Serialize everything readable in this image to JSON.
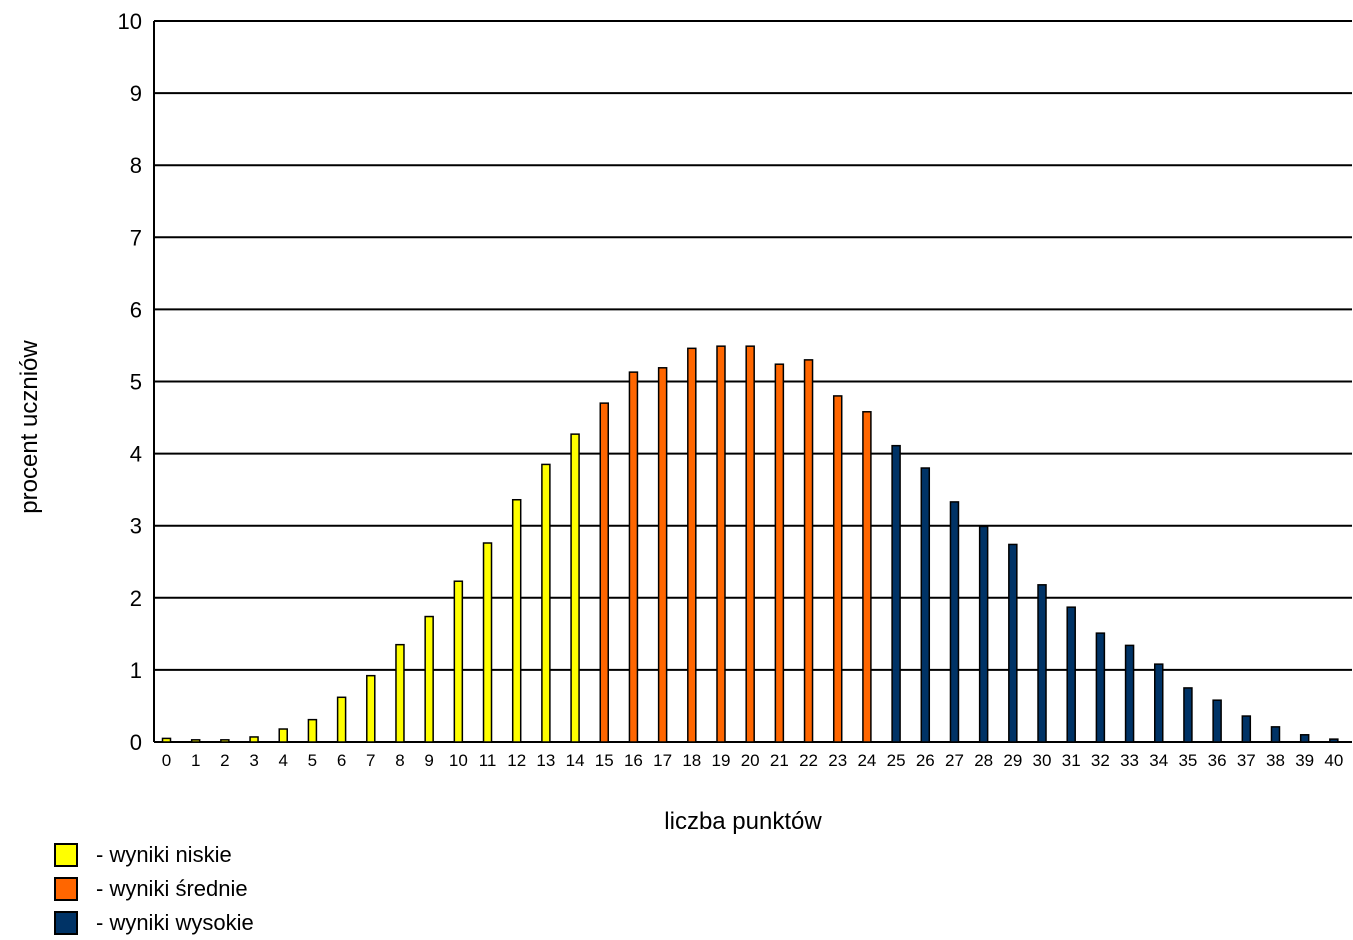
{
  "chart_data": {
    "type": "bar",
    "xlabel": "liczba punktów",
    "ylabel": "procent uczniów",
    "ylim": [
      0,
      10
    ],
    "yticks": [
      "0",
      "1",
      "2",
      "3",
      "4",
      "5",
      "6",
      "7",
      "8",
      "9",
      "10"
    ],
    "grid": true,
    "categories": [
      "0",
      "1",
      "2",
      "3",
      "4",
      "5",
      "6",
      "7",
      "8",
      "9",
      "10",
      "11",
      "12",
      "13",
      "14",
      "15",
      "16",
      "17",
      "18",
      "19",
      "20",
      "21",
      "22",
      "23",
      "24",
      "25",
      "26",
      "27",
      "28",
      "29",
      "30",
      "31",
      "32",
      "33",
      "34",
      "35",
      "36",
      "37",
      "38",
      "39",
      "40"
    ],
    "values": [
      0.05,
      0.03,
      0.03,
      0.07,
      0.18,
      0.31,
      0.62,
      0.92,
      1.35,
      1.74,
      2.23,
      2.76,
      3.36,
      3.85,
      4.27,
      4.7,
      5.13,
      5.19,
      5.46,
      5.49,
      5.49,
      5.24,
      5.3,
      4.8,
      4.58,
      4.11,
      3.8,
      3.33,
      2.99,
      2.74,
      2.18,
      1.87,
      1.51,
      1.34,
      1.08,
      0.75,
      0.58,
      0.36,
      0.21,
      0.1,
      0.04
    ],
    "bar_groups": [
      0,
      0,
      0,
      0,
      0,
      0,
      0,
      0,
      0,
      0,
      0,
      0,
      0,
      0,
      0,
      1,
      1,
      1,
      1,
      1,
      1,
      1,
      1,
      1,
      1,
      2,
      2,
      2,
      2,
      2,
      2,
      2,
      2,
      2,
      2,
      2,
      2,
      2,
      2,
      2,
      2
    ],
    "legend": [
      {
        "label": "- wyniki niskie",
        "color": "#ffff00"
      },
      {
        "label": "- wyniki średnie",
        "color": "#ff6600"
      },
      {
        "label": "- wyniki wysokie",
        "color": "#003366"
      }
    ],
    "legend_position": "bottom-left"
  }
}
